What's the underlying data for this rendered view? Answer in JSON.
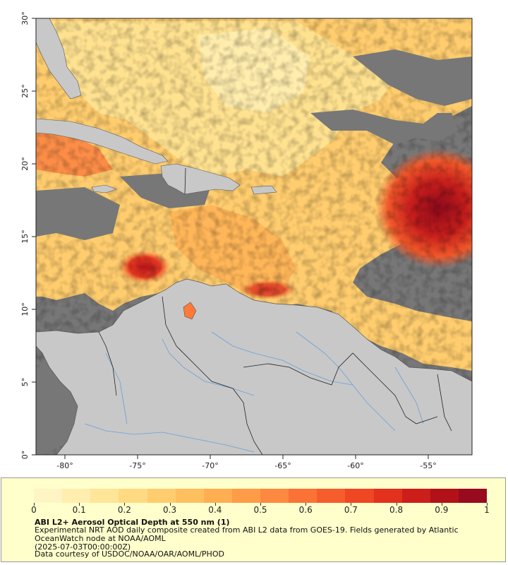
{
  "map": {
    "lon_ticks": [
      "-80°",
      "-75°",
      "-70°",
      "-65°",
      "-60°",
      "-55°"
    ],
    "lat_ticks": [
      "30°",
      "25°",
      "20°",
      "15°",
      "10°",
      "5°",
      "0°"
    ],
    "lon_range": [
      -82,
      -52
    ],
    "lat_range": [
      0,
      30
    ],
    "colors": {
      "ocean_nodata": "#777777",
      "land": "#c8c8c8",
      "rivers": "#6a9fd8",
      "borders": "#222222"
    }
  },
  "legend": {
    "colorbar_colors": [
      "#fff5c4",
      "#ffeeae",
      "#ffe597",
      "#ffda82",
      "#ffcd6e",
      "#ffbf5e",
      "#ffae52",
      "#fe9c48",
      "#fd8840",
      "#fb7236",
      "#f65d2d",
      "#ef4624",
      "#e2311d",
      "#cc1e1a",
      "#b31119",
      "#970a20"
    ],
    "ticks": [
      "0",
      "0.1",
      "0.2",
      "0.3",
      "0.4",
      "0.5",
      "0.6",
      "0.7",
      "0.8",
      "0.9",
      "1"
    ],
    "title": "ABI L2+ Aerosol Optical Depth at 550 nm (1)",
    "line1": "Experimental NRT AOD daily composite created from ABI L2 data from GOES-19. Fields generated by Atlantic OceanWatch node at NOAA/AOML",
    "line2": "(2025-07-03T00:00:00Z)",
    "line3": "Data courtesy of USDOC/NOAA/OAR/AOML/PHOD"
  }
}
